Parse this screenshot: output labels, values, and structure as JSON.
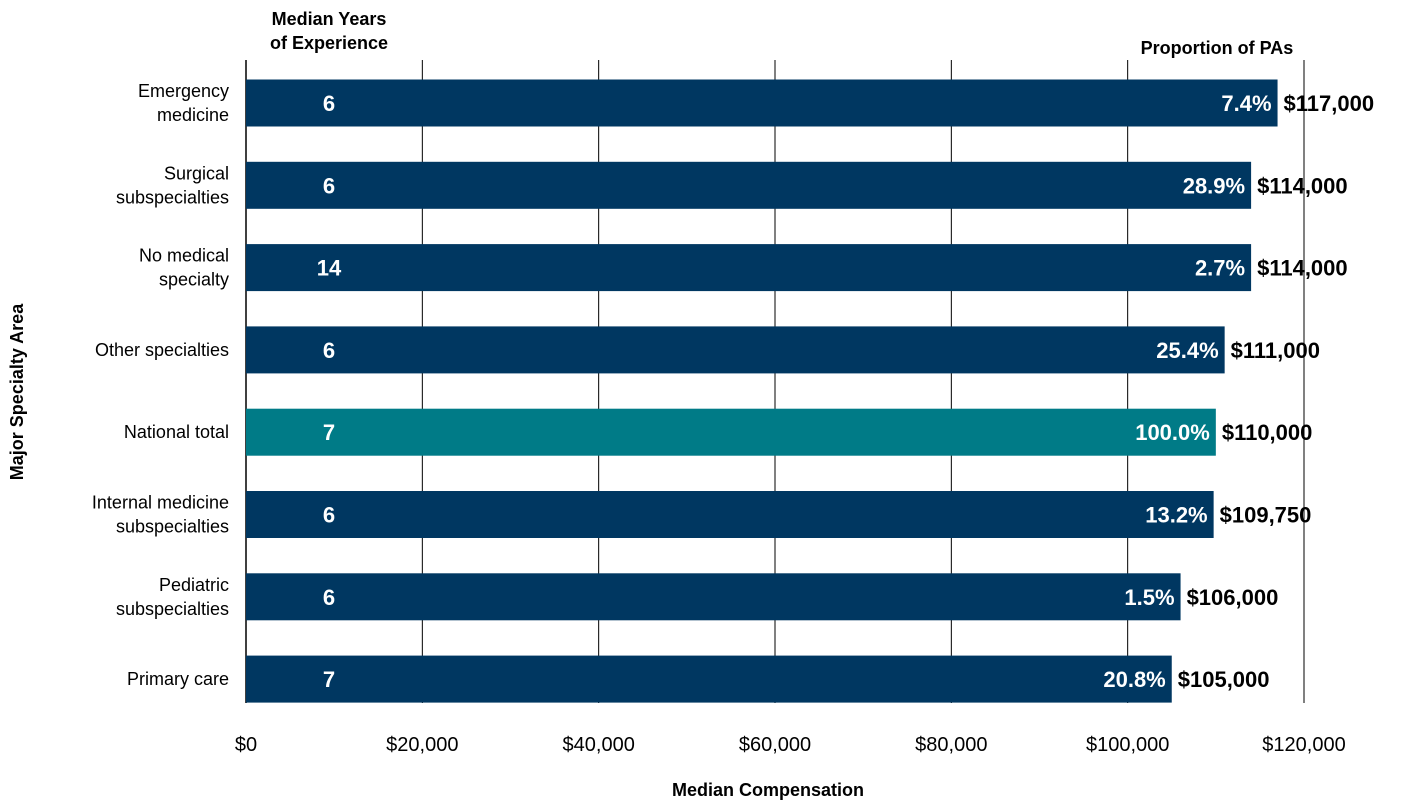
{
  "chart_data": {
    "type": "bar",
    "orientation": "horizontal",
    "xlabel": "Median Compensation",
    "ylabel": "Major Specialty Area",
    "left_column_header": [
      "Median Years",
      "of Experience"
    ],
    "right_column_header": "Proportion of PAs",
    "xlim": [
      0,
      120000
    ],
    "grid": true,
    "x_ticks": [
      "$0",
      "$20,000",
      "$40,000",
      "$60,000",
      "$80,000",
      "$100,000",
      "$120,000"
    ],
    "x_tick_values": [
      0,
      20000,
      40000,
      60000,
      80000,
      100000,
      120000
    ],
    "colors": {
      "default": "#003761",
      "highlight": "#007b87",
      "inner_label": "#ffffff",
      "value_label": "#000000",
      "grid": "#000000"
    },
    "categories": [
      [
        "Emergency",
        "medicine"
      ],
      [
        "Surgical",
        "subspecialties"
      ],
      [
        "No medical",
        "specialty"
      ],
      [
        "Other specialties"
      ],
      [
        "National total"
      ],
      [
        "Internal medicine",
        "subspecialties"
      ],
      [
        "Pediatric",
        "subspecialties"
      ],
      [
        "Primary care"
      ]
    ],
    "values": [
      117000,
      114000,
      114000,
      111000,
      110000,
      109750,
      106000,
      105000
    ],
    "value_labels": [
      "$117,000",
      "$114,000",
      "$114,000",
      "$111,000",
      "$110,000",
      "$109,750",
      "$106,000",
      "$105,000"
    ],
    "years_experience": [
      "6",
      "6",
      "14",
      "6",
      "7",
      "6",
      "6",
      "7"
    ],
    "proportion_labels": [
      "7.4%",
      "28.9%",
      "2.7%",
      "25.4%",
      "100.0%",
      "13.2%",
      "1.5%",
      "20.8%"
    ],
    "highlight_index": 4
  }
}
